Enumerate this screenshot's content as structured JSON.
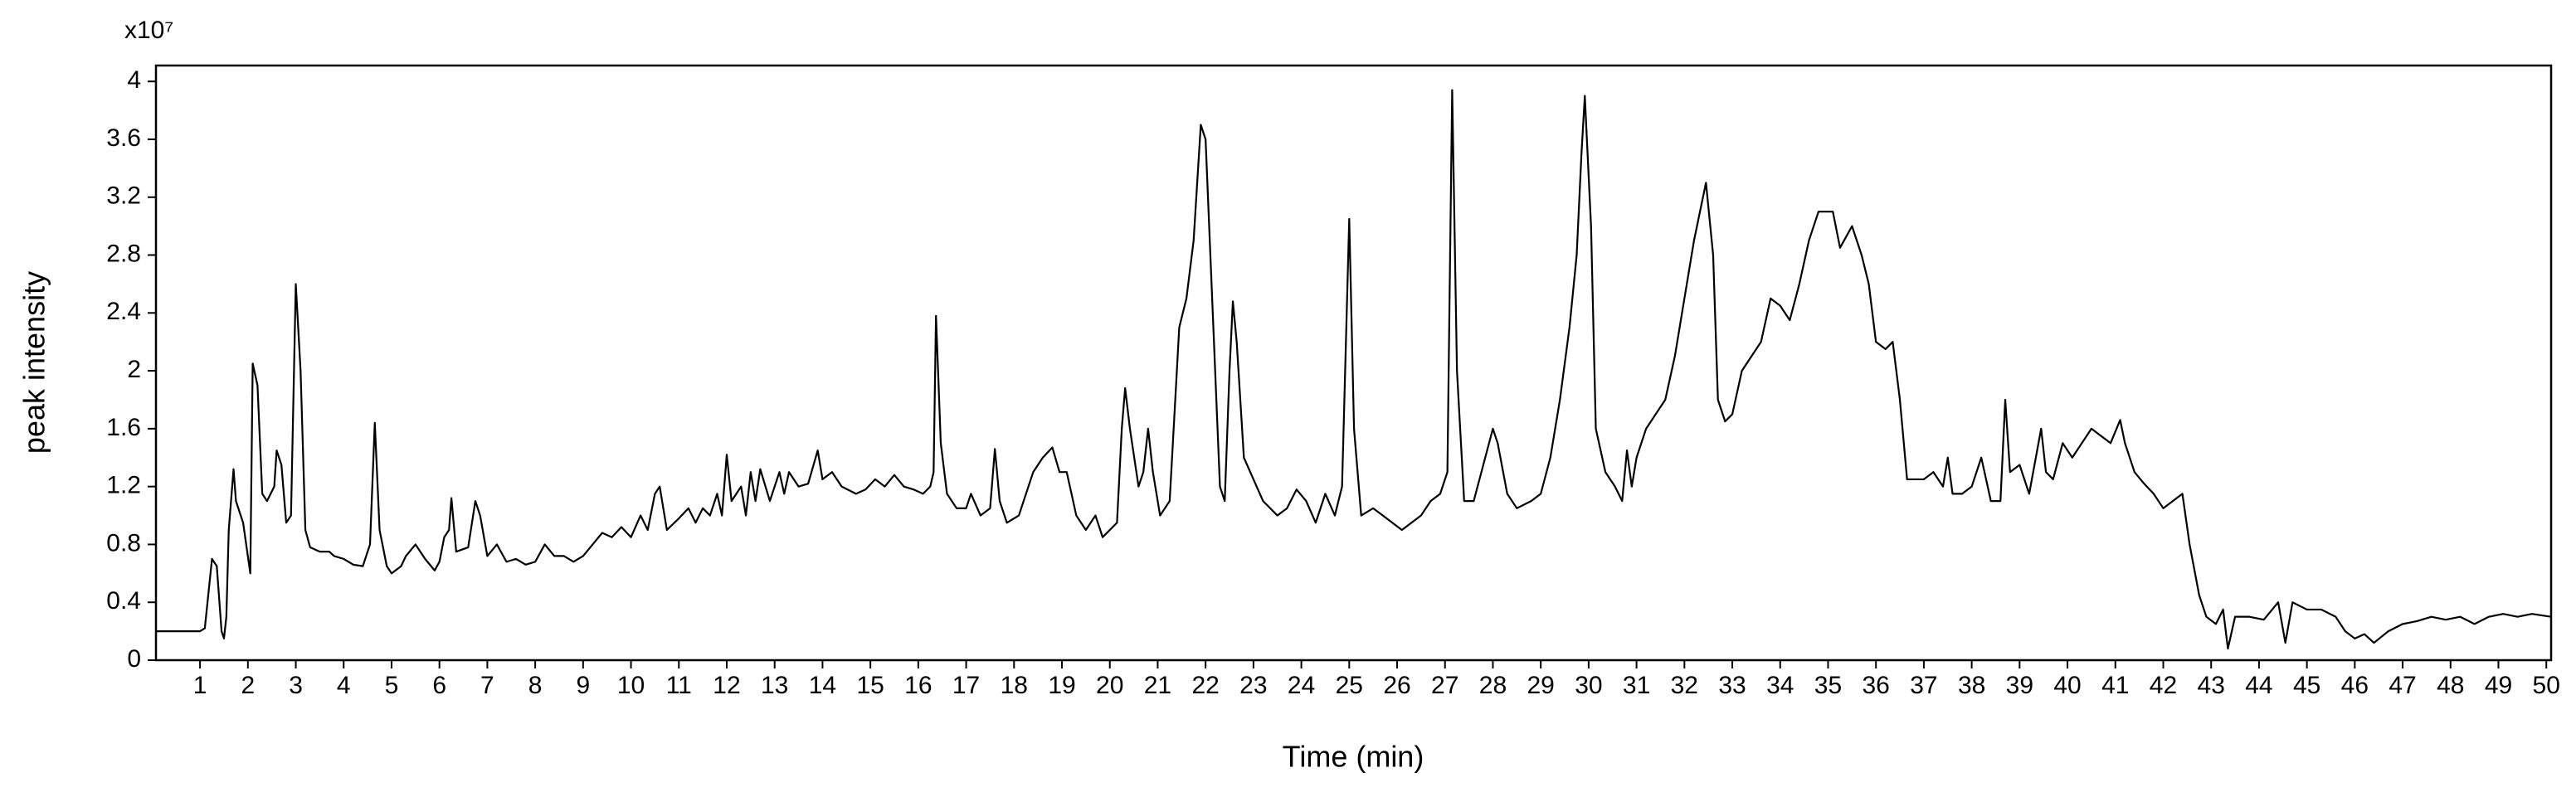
{
  "chart_data": {
    "type": "line",
    "ylabel": "peak intensity",
    "xlabel": "Time (min)",
    "y_multiplier": "x10⁷",
    "xlim": [
      0.08,
      50.1
    ],
    "ylim": [
      0,
      4.11
    ],
    "xticks": [
      1,
      2,
      3,
      4,
      5,
      6,
      7,
      8,
      9,
      10,
      11,
      12,
      13,
      14,
      15,
      16,
      17,
      18,
      19,
      20,
      21,
      22,
      23,
      24,
      25,
      26,
      27,
      28,
      29,
      30,
      31,
      32,
      33,
      34,
      35,
      36,
      37,
      38,
      39,
      40,
      41,
      42,
      43,
      44,
      45,
      46,
      47,
      48,
      49,
      50
    ],
    "yticks": [
      0,
      0.4,
      0.8,
      1.2,
      1.6,
      2,
      2.4,
      2.8,
      3.2,
      3.6,
      4
    ],
    "color": "#000000",
    "x": [
      0.08,
      1.0,
      1.1,
      1.25,
      1.35,
      1.45,
      1.5,
      1.55,
      1.6,
      1.7,
      1.75,
      1.9,
      2.05,
      2.1,
      2.2,
      2.3,
      2.4,
      2.55,
      2.6,
      2.7,
      2.8,
      2.9,
      3.0,
      3.1,
      3.2,
      3.3,
      3.5,
      3.7,
      3.8,
      4.0,
      4.2,
      4.4,
      4.55,
      4.65,
      4.75,
      4.9,
      5.0,
      5.2,
      5.3,
      5.5,
      5.7,
      5.9,
      6.0,
      6.1,
      6.2,
      6.25,
      6.35,
      6.6,
      6.75,
      6.85,
      7.0,
      7.2,
      7.4,
      7.6,
      7.8,
      8.0,
      8.2,
      8.4,
      8.6,
      8.8,
      9.0,
      9.2,
      9.4,
      9.6,
      9.8,
      10.0,
      10.2,
      10.35,
      10.5,
      10.6,
      10.75,
      11.0,
      11.2,
      11.35,
      11.5,
      11.65,
      11.8,
      11.9,
      12.0,
      12.1,
      12.3,
      12.4,
      12.5,
      12.6,
      12.7,
      12.9,
      13.1,
      13.2,
      13.3,
      13.5,
      13.7,
      13.9,
      14.0,
      14.2,
      14.4,
      14.7,
      14.9,
      15.1,
      15.3,
      15.5,
      15.7,
      15.9,
      16.1,
      16.25,
      16.32,
      16.37,
      16.47,
      16.6,
      16.8,
      17.0,
      17.1,
      17.3,
      17.5,
      17.6,
      17.7,
      17.85,
      18.1,
      18.4,
      18.6,
      18.8,
      18.95,
      19.1,
      19.3,
      19.5,
      19.7,
      19.85,
      20.0,
      20.15,
      20.25,
      20.32,
      20.42,
      20.6,
      20.7,
      20.8,
      20.9,
      21.05,
      21.25,
      21.35,
      21.45,
      21.6,
      21.75,
      21.9,
      22.0,
      22.15,
      22.3,
      22.4,
      22.5,
      22.57,
      22.65,
      22.8,
      23.0,
      23.2,
      23.5,
      23.7,
      23.9,
      24.1,
      24.3,
      24.5,
      24.7,
      24.85,
      25.0,
      25.1,
      25.25,
      25.5,
      25.7,
      25.9,
      26.1,
      26.3,
      26.5,
      26.7,
      26.9,
      27.05,
      27.15,
      27.25,
      27.4,
      27.6,
      27.8,
      28.0,
      28.1,
      28.3,
      28.5,
      28.8,
      29.0,
      29.2,
      29.4,
      29.6,
      29.75,
      29.85,
      29.92,
      30.05,
      30.15,
      30.35,
      30.55,
      30.7,
      30.8,
      30.9,
      31.0,
      31.2,
      31.4,
      31.6,
      31.8,
      32.0,
      32.2,
      32.45,
      32.6,
      32.7,
      32.85,
      33.0,
      33.2,
      33.4,
      33.6,
      33.8,
      34.0,
      34.2,
      34.4,
      34.6,
      34.8,
      35.1,
      35.25,
      35.5,
      35.7,
      35.85,
      36.0,
      36.2,
      36.35,
      36.5,
      36.65,
      37.0,
      37.2,
      37.4,
      37.5,
      37.6,
      37.8,
      38.0,
      38.2,
      38.4,
      38.6,
      38.7,
      38.8,
      39.0,
      39.2,
      39.45,
      39.55,
      39.7,
      39.9,
      40.1,
      40.3,
      40.5,
      40.7,
      40.9,
      41.1,
      41.2,
      41.4,
      41.6,
      41.8,
      42.0,
      42.2,
      42.4,
      42.55,
      42.75,
      42.9,
      43.1,
      43.25,
      43.35,
      43.5,
      43.8,
      44.1,
      44.4,
      44.55,
      44.7,
      45.0,
      45.3,
      45.6,
      45.8,
      46.0,
      46.2,
      46.4,
      46.7,
      47.0,
      47.3,
      47.6,
      47.9,
      48.2,
      48.5,
      48.8,
      49.1,
      49.4,
      49.7,
      50.1
    ],
    "values": [
      0.2,
      0.2,
      0.22,
      0.7,
      0.65,
      0.2,
      0.15,
      0.3,
      0.9,
      1.32,
      1.1,
      0.95,
      0.6,
      2.05,
      1.9,
      1.15,
      1.1,
      1.2,
      1.45,
      1.35,
      0.95,
      1.0,
      2.6,
      2.0,
      0.9,
      0.78,
      0.75,
      0.75,
      0.72,
      0.7,
      0.66,
      0.65,
      0.8,
      1.64,
      0.9,
      0.65,
      0.6,
      0.65,
      0.72,
      0.8,
      0.7,
      0.62,
      0.68,
      0.85,
      0.9,
      1.12,
      0.75,
      0.78,
      1.1,
      1.0,
      0.72,
      0.8,
      0.68,
      0.7,
      0.66,
      0.68,
      0.8,
      0.72,
      0.72,
      0.68,
      0.72,
      0.8,
      0.88,
      0.85,
      0.92,
      0.85,
      1.0,
      0.9,
      1.15,
      1.2,
      0.9,
      0.98,
      1.05,
      0.95,
      1.05,
      1.0,
      1.15,
      1.0,
      1.42,
      1.1,
      1.2,
      1.0,
      1.3,
      1.1,
      1.32,
      1.1,
      1.3,
      1.15,
      1.3,
      1.2,
      1.22,
      1.45,
      1.25,
      1.3,
      1.2,
      1.15,
      1.18,
      1.25,
      1.2,
      1.28,
      1.2,
      1.18,
      1.15,
      1.2,
      1.3,
      2.38,
      1.5,
      1.15,
      1.05,
      1.05,
      1.15,
      1.0,
      1.05,
      1.46,
      1.1,
      0.95,
      1.0,
      1.3,
      1.4,
      1.47,
      1.3,
      1.3,
      1.0,
      0.9,
      1.0,
      0.85,
      0.9,
      0.95,
      1.6,
      1.88,
      1.6,
      1.2,
      1.3,
      1.6,
      1.3,
      1.0,
      1.1,
      1.7,
      2.3,
      2.5,
      2.9,
      3.7,
      3.6,
      2.4,
      1.2,
      1.1,
      2.0,
      2.48,
      2.2,
      1.4,
      1.25,
      1.1,
      1.0,
      1.05,
      1.18,
      1.1,
      0.95,
      1.15,
      1.0,
      1.2,
      3.05,
      1.6,
      1.0,
      1.05,
      1.0,
      0.95,
      0.9,
      0.95,
      1.0,
      1.1,
      1.15,
      1.3,
      3.94,
      2.0,
      1.1,
      1.1,
      1.35,
      1.6,
      1.5,
      1.15,
      1.05,
      1.1,
      1.15,
      1.4,
      1.8,
      2.3,
      2.8,
      3.5,
      3.9,
      3.0,
      1.6,
      1.3,
      1.2,
      1.1,
      1.45,
      1.2,
      1.4,
      1.6,
      1.7,
      1.8,
      2.1,
      2.5,
      2.9,
      3.3,
      2.8,
      1.8,
      1.65,
      1.7,
      2.0,
      2.1,
      2.2,
      2.5,
      2.45,
      2.35,
      2.6,
      2.9,
      3.1,
      3.1,
      2.85,
      3.0,
      2.8,
      2.6,
      2.2,
      2.15,
      2.2,
      1.8,
      1.25,
      1.25,
      1.3,
      1.2,
      1.4,
      1.15,
      1.15,
      1.2,
      1.4,
      1.1,
      1.1,
      1.8,
      1.3,
      1.35,
      1.15,
      1.6,
      1.3,
      1.25,
      1.5,
      1.4,
      1.5,
      1.6,
      1.55,
      1.5,
      1.66,
      1.5,
      1.3,
      1.22,
      1.15,
      1.05,
      1.1,
      1.15,
      0.8,
      0.45,
      0.3,
      0.25,
      0.35,
      0.08,
      0.3,
      0.3,
      0.28,
      0.4,
      0.12,
      0.4,
      0.35,
      0.35,
      0.3,
      0.2,
      0.15,
      0.18,
      0.12,
      0.2,
      0.25,
      0.27,
      0.3,
      0.28,
      0.3,
      0.25,
      0.3,
      0.32,
      0.3,
      0.32,
      0.3
    ]
  }
}
